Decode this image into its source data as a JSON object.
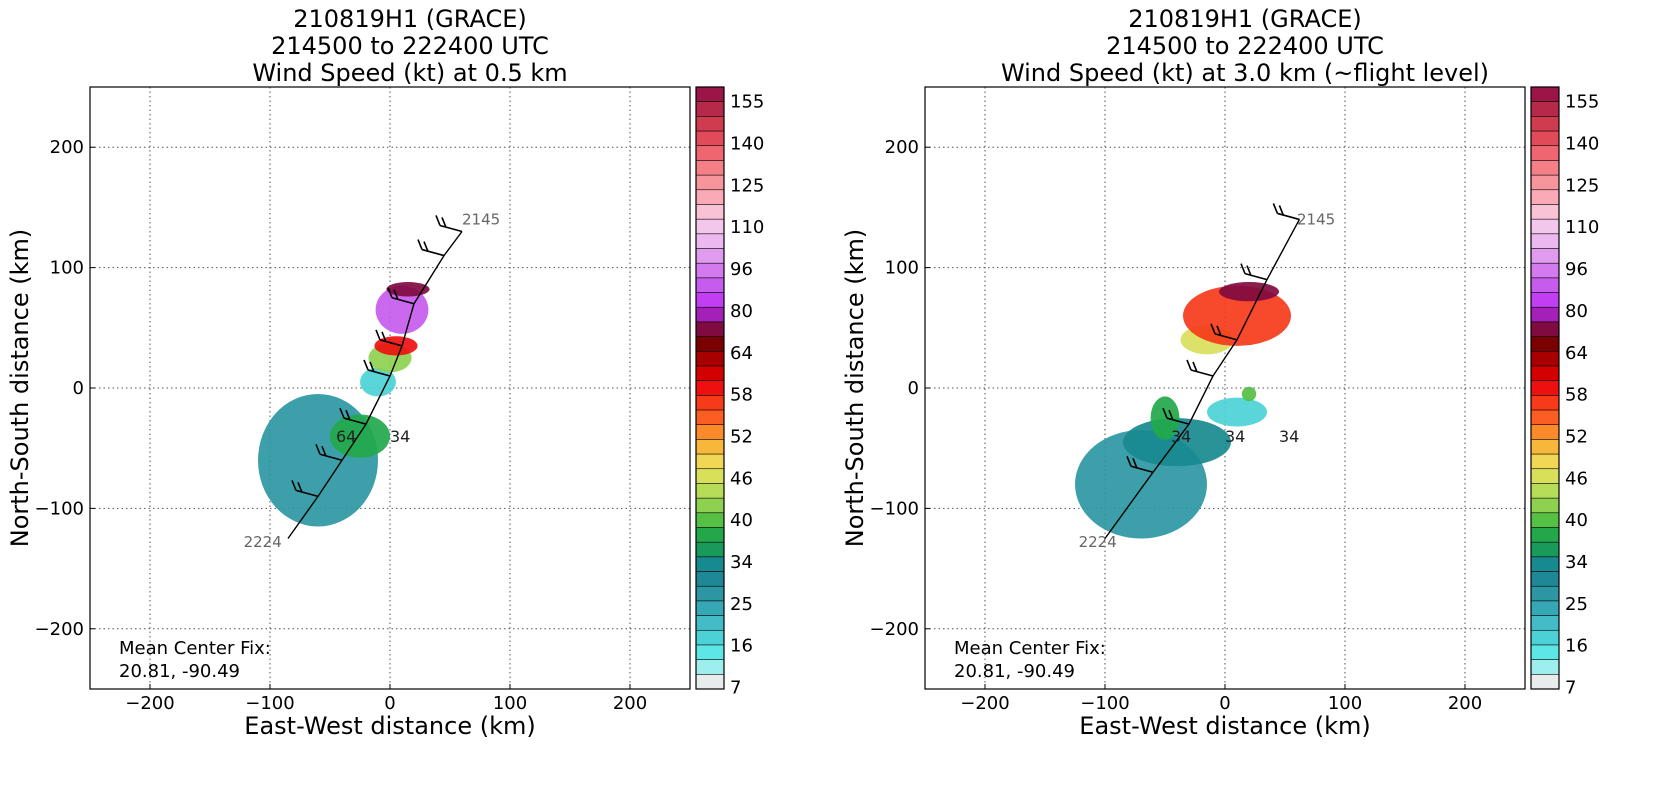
{
  "colors": {
    "grid": "#555555",
    "track": "#000000",
    "time_label": "#666666"
  },
  "colorbar": {
    "labels": [
      "155",
      "140",
      "125",
      "110",
      "96",
      "80",
      "64",
      "58",
      "52",
      "46",
      "40",
      "34",
      "25",
      "16",
      "7"
    ],
    "bins_top_to_bottom": [
      "#9b1646",
      "#b52a48",
      "#cf3c4f",
      "#e14a58",
      "#ee6670",
      "#f47f86",
      "#f7959c",
      "#f9aab6",
      "#f9c2d6",
      "#f3c7ec",
      "#ebb8f0",
      "#e09bee",
      "#d37bee",
      "#c65bed",
      "#c13ef2",
      "#a420b8",
      "#7f0b40",
      "#7a0000",
      "#a80000",
      "#d30000",
      "#ee1010",
      "#f63a1a",
      "#fb5d22",
      "#fb8a2b",
      "#f6b73a",
      "#f2d656",
      "#d8e05a",
      "#b7dc58",
      "#8ed150",
      "#55c043",
      "#22a84b",
      "#1a9a5a",
      "#178a8f",
      "#1f8896",
      "#2c97a3",
      "#36a8b5",
      "#43bcc7",
      "#4cd2d6",
      "#5de6e6",
      "#9eeeee",
      "#e8ecec"
    ]
  },
  "chart_data": [
    {
      "type": "heatmap",
      "title": "210819H1 (GRACE)\n214500 to 222400 UTC\nWind Speed (kt) at 0.5 km",
      "title_lines": [
        "210819H1 (GRACE)",
        "214500 to 222400 UTC",
        "Wind Speed (kt) at 0.5 km"
      ],
      "xlabel": "East-West distance (km)",
      "ylabel": "North-South distance (km)",
      "xlim": [
        -250,
        250
      ],
      "ylim": [
        -250,
        250
      ],
      "xticks": [
        -200,
        -100,
        0,
        100,
        200
      ],
      "yticks": [
        200,
        100,
        0,
        -100,
        -200
      ],
      "tick_labels_x": [
        "−200",
        "−100",
        "0",
        "100",
        "200"
      ],
      "tick_labels_y": [
        "200",
        "100",
        "0",
        "−100",
        "−200"
      ],
      "grid": true,
      "colorbar_unit": "kt",
      "flight_track": [
        [
          -85,
          -125
        ],
        [
          -60,
          -90
        ],
        [
          -40,
          -60
        ],
        [
          -20,
          -30
        ],
        [
          0,
          10
        ],
        [
          10,
          35
        ],
        [
          20,
          70
        ],
        [
          45,
          110
        ],
        [
          60,
          130
        ]
      ],
      "track_time_labels": [
        {
          "text": "2145",
          "x": 60,
          "y": 136
        },
        {
          "text": "2224",
          "x": -122,
          "y": -132
        }
      ],
      "wind_speed_regions_kt": [
        {
          "x": -60,
          "y": -60,
          "rx": 50,
          "ry": 55,
          "speed": 22
        },
        {
          "x": -25,
          "y": -40,
          "rx": 25,
          "ry": 18,
          "speed": 34
        },
        {
          "x": -10,
          "y": 5,
          "rx": 15,
          "ry": 12,
          "speed": 16
        },
        {
          "x": 0,
          "y": 25,
          "rx": 18,
          "ry": 12,
          "speed": 40
        },
        {
          "x": 5,
          "y": 35,
          "rx": 18,
          "ry": 8,
          "speed": 58
        },
        {
          "x": 10,
          "y": 65,
          "rx": 22,
          "ry": 20,
          "speed": 80
        },
        {
          "x": 15,
          "y": 82,
          "rx": 18,
          "ry": 6,
          "speed": 62
        }
      ],
      "contour_labels": [
        "64",
        "34"
      ],
      "annotation_lines": [
        "Mean Center Fix:",
        "20.81, -90.49"
      ]
    },
    {
      "type": "heatmap",
      "title": "210819H1 (GRACE)\n214500 to 222400 UTC\nWind Speed (kt) at 3.0 km (~flight level)",
      "title_lines": [
        "210819H1 (GRACE)",
        "214500 to 222400 UTC",
        "Wind Speed (kt) at 3.0 km (~flight level)"
      ],
      "xlabel": "East-West distance (km)",
      "ylabel": "North-South distance (km)",
      "xlim": [
        -250,
        250
      ],
      "ylim": [
        -250,
        250
      ],
      "xticks": [
        -200,
        -100,
        0,
        100,
        200
      ],
      "yticks": [
        200,
        100,
        0,
        -100,
        -200
      ],
      "tick_labels_x": [
        "−200",
        "−100",
        "0",
        "100",
        "200"
      ],
      "tick_labels_y": [
        "200",
        "100",
        "0",
        "−100",
        "−200"
      ],
      "grid": true,
      "colorbar_unit": "kt",
      "flight_track": [
        [
          -100,
          -125
        ],
        [
          -60,
          -70
        ],
        [
          -30,
          -30
        ],
        [
          -10,
          10
        ],
        [
          10,
          40
        ],
        [
          35,
          90
        ],
        [
          62,
          140
        ]
      ],
      "track_time_labels": [
        {
          "text": "2145",
          "x": 60,
          "y": 136
        },
        {
          "text": "2224",
          "x": -122,
          "y": -132
        }
      ],
      "wind_speed_regions_kt": [
        {
          "x": -70,
          "y": -80,
          "rx": 55,
          "ry": 45,
          "speed": 22
        },
        {
          "x": -40,
          "y": -45,
          "rx": 45,
          "ry": 20,
          "speed": 25
        },
        {
          "x": -50,
          "y": -25,
          "rx": 12,
          "ry": 18,
          "speed": 34
        },
        {
          "x": 10,
          "y": -20,
          "rx": 25,
          "ry": 12,
          "speed": 16
        },
        {
          "x": 20,
          "y": -5,
          "rx": 6,
          "ry": 6,
          "speed": 36
        },
        {
          "x": -15,
          "y": 40,
          "rx": 22,
          "ry": 12,
          "speed": 44
        },
        {
          "x": 10,
          "y": 60,
          "rx": 45,
          "ry": 25,
          "speed": 56
        },
        {
          "x": 20,
          "y": 80,
          "rx": 25,
          "ry": 8,
          "speed": 62
        }
      ],
      "contour_labels": [
        "34",
        "34",
        "34"
      ],
      "annotation_lines": [
        "Mean Center Fix:",
        "20.81, -90.49"
      ]
    }
  ]
}
